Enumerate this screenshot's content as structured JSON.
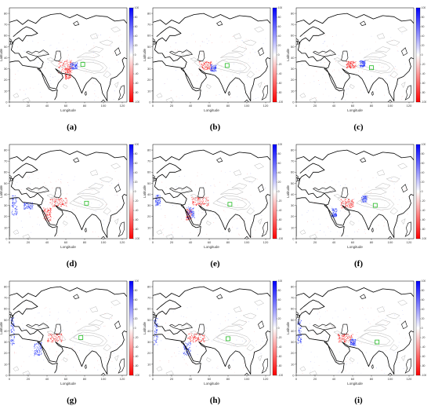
{
  "figure": {
    "panels": [
      {
        "label": "(a)",
        "red": [
          [
            60,
            32,
            16,
            12
          ],
          [
            62,
            26,
            6,
            10
          ]
        ],
        "blue": [
          [
            68,
            33,
            8,
            6
          ]
        ],
        "green": [
          78,
          34
        ]
      },
      {
        "label": "(b)",
        "red": [
          [
            56,
            33,
            14,
            8
          ]
        ],
        "blue": [
          [
            64,
            31,
            6,
            6
          ]
        ],
        "green": [
          79,
          33
        ]
      },
      {
        "label": "(c)",
        "red": [
          [
            58,
            34,
            10,
            6
          ]
        ],
        "blue": [
          [
            70,
            35,
            6,
            6
          ]
        ],
        "green": [
          80,
          31
        ]
      },
      {
        "label": "(d)",
        "red": [
          [
            52,
            33,
            18,
            8
          ],
          [
            40,
            22,
            8,
            12
          ]
        ],
        "blue": [
          [
            5,
            30,
            6,
            18
          ],
          [
            20,
            30,
            10,
            6
          ]
        ],
        "green": [
          82,
          32
        ]
      },
      {
        "label": "(e)",
        "red": [
          [
            50,
            34,
            18,
            8
          ],
          [
            38,
            22,
            6,
            10
          ]
        ],
        "blue": [
          [
            40,
            24,
            8,
            10
          ],
          [
            5,
            35,
            5,
            10
          ]
        ],
        "green": [
          82,
          31
        ]
      },
      {
        "label": "(f)",
        "red": [
          [
            54,
            32,
            14,
            8
          ]
        ],
        "blue": [
          [
            72,
            36,
            6,
            6
          ],
          [
            40,
            24,
            6,
            8
          ]
        ],
        "green": [
          84,
          30
        ]
      },
      {
        "label": "(g)",
        "red": [
          [
            48,
            34,
            16,
            8
          ]
        ],
        "blue": [
          [
            3,
            40,
            4,
            25
          ],
          [
            30,
            24,
            8,
            12
          ]
        ],
        "green": [
          76,
          34
        ]
      },
      {
        "label": "(h)",
        "red": [
          [
            46,
            34,
            18,
            8
          ]
        ],
        "blue": [
          [
            3,
            40,
            4,
            25
          ],
          [
            36,
            24,
            8,
            12
          ]
        ],
        "green": [
          80,
          33
        ]
      },
      {
        "label": "(i)",
        "red": [
          [
            52,
            34,
            16,
            8
          ]
        ],
        "blue": [
          [
            3,
            40,
            4,
            22
          ],
          [
            60,
            30,
            6,
            6
          ]
        ],
        "green": [
          86,
          30
        ]
      }
    ]
  },
  "axes": {
    "xlabel": "Longitude",
    "ylabel": "Latitude",
    "xticks": [
      0,
      20,
      40,
      60,
      80,
      100,
      120
    ],
    "yticks": [
      0,
      10,
      20,
      30,
      40,
      50,
      60,
      70,
      80
    ],
    "xlim": [
      0,
      125
    ],
    "ylim": [
      0,
      85
    ]
  },
  "colorbar": {
    "ticks": [
      100,
      80,
      60,
      40,
      20,
      0,
      -20,
      -40,
      -60,
      -80,
      -100
    ],
    "colors": {
      "high": "#0000ff",
      "mid": "#ffffff",
      "low": "#ff0000"
    }
  },
  "colors": {
    "coast": "#000000",
    "contour": "#9a9a9a",
    "green_marker": "#22bb22"
  }
}
